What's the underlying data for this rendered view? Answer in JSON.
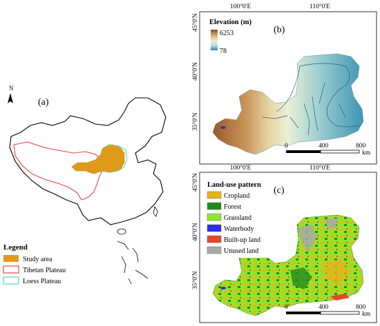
{
  "panel_a": {
    "label": "(a)",
    "north": "N",
    "legend": {
      "title": "Legend",
      "items": [
        {
          "label": "Study area",
          "color": "#e09a1a"
        },
        {
          "label": "Tibetan Plateau",
          "color": "#e8453c"
        },
        {
          "label": "Loess Plateau",
          "color": "#4dd6d0"
        }
      ]
    }
  },
  "panel_b": {
    "label": "(b)",
    "top_ticks": [
      "100°0'E",
      "110°0'E"
    ],
    "left_ticks": [
      "45°0'N",
      "40°0'N",
      "35°0'N"
    ],
    "legend": {
      "title": "Elevation (m)",
      "max": "6253",
      "min": "78",
      "gradient": [
        "#8b4a1c",
        "#d8b47a",
        "#f2edc6",
        "#bfe3e0",
        "#2a8aa8"
      ]
    },
    "scalebar": {
      "labels": [
        "0",
        "400",
        "800"
      ],
      "unit": "km"
    }
  },
  "panel_c": {
    "label": "(c)",
    "top_ticks": [
      "100°0'E",
      "110°0'E"
    ],
    "left_ticks": [
      "45°0'N",
      "40°0'N",
      "35°0'N"
    ],
    "legend": {
      "title": "Land-use pattern",
      "items": [
        {
          "label": "Cropland",
          "color": "#e8b31a"
        },
        {
          "label": "Forest",
          "color": "#1e8c1e"
        },
        {
          "label": "Grassland",
          "color": "#8ee82a"
        },
        {
          "label": "Waterbody",
          "color": "#2c2cf0"
        },
        {
          "label": "Built-up land",
          "color": "#e8452a"
        },
        {
          "label": "Unused land",
          "color": "#a8a8a8"
        }
      ]
    },
    "scalebar": {
      "labels": [
        "0",
        "400",
        "800"
      ],
      "unit": "km"
    }
  }
}
